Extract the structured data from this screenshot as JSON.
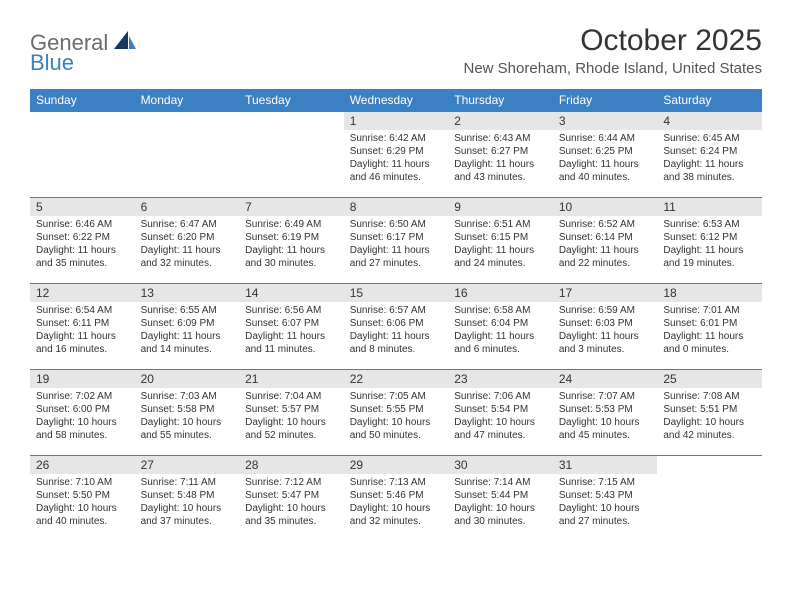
{
  "logo": {
    "part1": "General",
    "part2": "Blue"
  },
  "title": "October 2025",
  "location": "New Shoreham, Rhode Island, United States",
  "colors": {
    "header_bg": "#3b80c2",
    "header_text": "#ffffff",
    "daynum_bg": "#e6e6e6",
    "border": "#3b80c2",
    "logo_gray": "#6b6b6b",
    "logo_blue": "#3b80c2"
  },
  "weekdays": [
    "Sunday",
    "Monday",
    "Tuesday",
    "Wednesday",
    "Thursday",
    "Friday",
    "Saturday"
  ],
  "weeks": [
    [
      {
        "n": "",
        "sr": "",
        "ss": "",
        "dl": ""
      },
      {
        "n": "",
        "sr": "",
        "ss": "",
        "dl": ""
      },
      {
        "n": "",
        "sr": "",
        "ss": "",
        "dl": ""
      },
      {
        "n": "1",
        "sr": "Sunrise: 6:42 AM",
        "ss": "Sunset: 6:29 PM",
        "dl": "Daylight: 11 hours and 46 minutes."
      },
      {
        "n": "2",
        "sr": "Sunrise: 6:43 AM",
        "ss": "Sunset: 6:27 PM",
        "dl": "Daylight: 11 hours and 43 minutes."
      },
      {
        "n": "3",
        "sr": "Sunrise: 6:44 AM",
        "ss": "Sunset: 6:25 PM",
        "dl": "Daylight: 11 hours and 40 minutes."
      },
      {
        "n": "4",
        "sr": "Sunrise: 6:45 AM",
        "ss": "Sunset: 6:24 PM",
        "dl": "Daylight: 11 hours and 38 minutes."
      }
    ],
    [
      {
        "n": "5",
        "sr": "Sunrise: 6:46 AM",
        "ss": "Sunset: 6:22 PM",
        "dl": "Daylight: 11 hours and 35 minutes."
      },
      {
        "n": "6",
        "sr": "Sunrise: 6:47 AM",
        "ss": "Sunset: 6:20 PM",
        "dl": "Daylight: 11 hours and 32 minutes."
      },
      {
        "n": "7",
        "sr": "Sunrise: 6:49 AM",
        "ss": "Sunset: 6:19 PM",
        "dl": "Daylight: 11 hours and 30 minutes."
      },
      {
        "n": "8",
        "sr": "Sunrise: 6:50 AM",
        "ss": "Sunset: 6:17 PM",
        "dl": "Daylight: 11 hours and 27 minutes."
      },
      {
        "n": "9",
        "sr": "Sunrise: 6:51 AM",
        "ss": "Sunset: 6:15 PM",
        "dl": "Daylight: 11 hours and 24 minutes."
      },
      {
        "n": "10",
        "sr": "Sunrise: 6:52 AM",
        "ss": "Sunset: 6:14 PM",
        "dl": "Daylight: 11 hours and 22 minutes."
      },
      {
        "n": "11",
        "sr": "Sunrise: 6:53 AM",
        "ss": "Sunset: 6:12 PM",
        "dl": "Daylight: 11 hours and 19 minutes."
      }
    ],
    [
      {
        "n": "12",
        "sr": "Sunrise: 6:54 AM",
        "ss": "Sunset: 6:11 PM",
        "dl": "Daylight: 11 hours and 16 minutes."
      },
      {
        "n": "13",
        "sr": "Sunrise: 6:55 AM",
        "ss": "Sunset: 6:09 PM",
        "dl": "Daylight: 11 hours and 14 minutes."
      },
      {
        "n": "14",
        "sr": "Sunrise: 6:56 AM",
        "ss": "Sunset: 6:07 PM",
        "dl": "Daylight: 11 hours and 11 minutes."
      },
      {
        "n": "15",
        "sr": "Sunrise: 6:57 AM",
        "ss": "Sunset: 6:06 PM",
        "dl": "Daylight: 11 hours and 8 minutes."
      },
      {
        "n": "16",
        "sr": "Sunrise: 6:58 AM",
        "ss": "Sunset: 6:04 PM",
        "dl": "Daylight: 11 hours and 6 minutes."
      },
      {
        "n": "17",
        "sr": "Sunrise: 6:59 AM",
        "ss": "Sunset: 6:03 PM",
        "dl": "Daylight: 11 hours and 3 minutes."
      },
      {
        "n": "18",
        "sr": "Sunrise: 7:01 AM",
        "ss": "Sunset: 6:01 PM",
        "dl": "Daylight: 11 hours and 0 minutes."
      }
    ],
    [
      {
        "n": "19",
        "sr": "Sunrise: 7:02 AM",
        "ss": "Sunset: 6:00 PM",
        "dl": "Daylight: 10 hours and 58 minutes."
      },
      {
        "n": "20",
        "sr": "Sunrise: 7:03 AM",
        "ss": "Sunset: 5:58 PM",
        "dl": "Daylight: 10 hours and 55 minutes."
      },
      {
        "n": "21",
        "sr": "Sunrise: 7:04 AM",
        "ss": "Sunset: 5:57 PM",
        "dl": "Daylight: 10 hours and 52 minutes."
      },
      {
        "n": "22",
        "sr": "Sunrise: 7:05 AM",
        "ss": "Sunset: 5:55 PM",
        "dl": "Daylight: 10 hours and 50 minutes."
      },
      {
        "n": "23",
        "sr": "Sunrise: 7:06 AM",
        "ss": "Sunset: 5:54 PM",
        "dl": "Daylight: 10 hours and 47 minutes."
      },
      {
        "n": "24",
        "sr": "Sunrise: 7:07 AM",
        "ss": "Sunset: 5:53 PM",
        "dl": "Daylight: 10 hours and 45 minutes."
      },
      {
        "n": "25",
        "sr": "Sunrise: 7:08 AM",
        "ss": "Sunset: 5:51 PM",
        "dl": "Daylight: 10 hours and 42 minutes."
      }
    ],
    [
      {
        "n": "26",
        "sr": "Sunrise: 7:10 AM",
        "ss": "Sunset: 5:50 PM",
        "dl": "Daylight: 10 hours and 40 minutes."
      },
      {
        "n": "27",
        "sr": "Sunrise: 7:11 AM",
        "ss": "Sunset: 5:48 PM",
        "dl": "Daylight: 10 hours and 37 minutes."
      },
      {
        "n": "28",
        "sr": "Sunrise: 7:12 AM",
        "ss": "Sunset: 5:47 PM",
        "dl": "Daylight: 10 hours and 35 minutes."
      },
      {
        "n": "29",
        "sr": "Sunrise: 7:13 AM",
        "ss": "Sunset: 5:46 PM",
        "dl": "Daylight: 10 hours and 32 minutes."
      },
      {
        "n": "30",
        "sr": "Sunrise: 7:14 AM",
        "ss": "Sunset: 5:44 PM",
        "dl": "Daylight: 10 hours and 30 minutes."
      },
      {
        "n": "31",
        "sr": "Sunrise: 7:15 AM",
        "ss": "Sunset: 5:43 PM",
        "dl": "Daylight: 10 hours and 27 minutes."
      },
      {
        "n": "",
        "sr": "",
        "ss": "",
        "dl": ""
      }
    ]
  ]
}
